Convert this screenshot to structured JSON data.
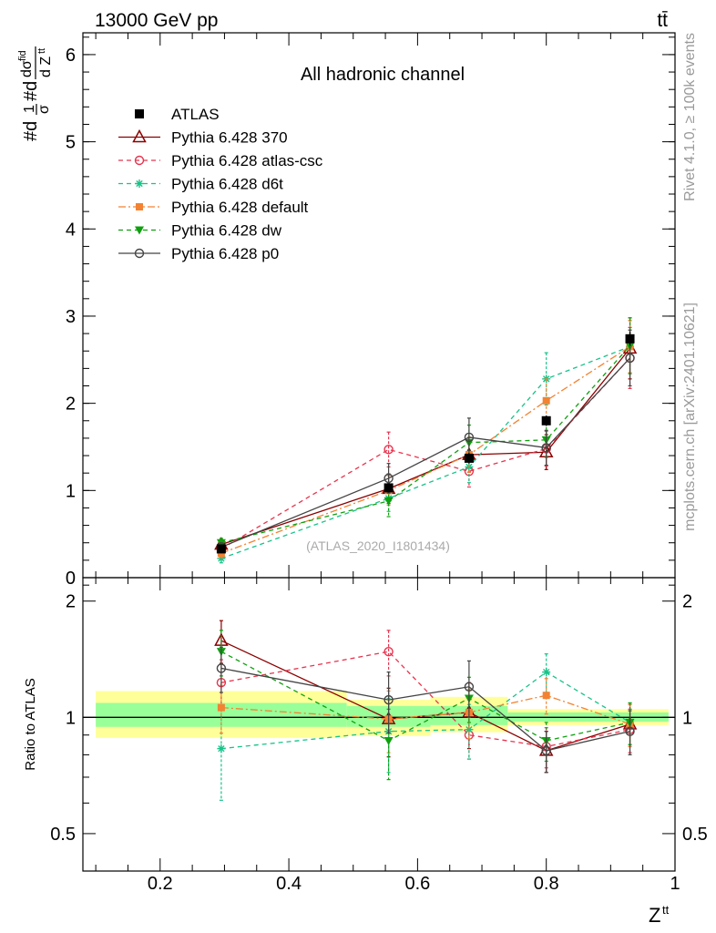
{
  "header": {
    "energy_label": "13000 GeV pp",
    "process_label": "tt̄",
    "side_label_top": "Rivet 4.1.0, ≥ 100k events",
    "side_label_bottom": "mcplots.cern.ch [arXiv:2401.10621]"
  },
  "colors": {
    "atlas": "#000000",
    "p370": "#8b0000",
    "atlascsc": "#e8344e",
    "d6t": "#17c389",
    "default": "#f38232",
    "dw": "#0fa00f",
    "p0": "#444444",
    "band_yellow": "#ffff99",
    "band_green": "#99ff99"
  },
  "chart_data": [
    {
      "type": "line",
      "panel": "main",
      "title": "All hadronic channel",
      "ylabel": "#d 1/σ #d dσ^fid / d Z^tt",
      "watermark": "(ATLAS_2020_I1801434)",
      "xlim": [
        0.08,
        1.0
      ],
      "ylim": [
        0,
        6.25
      ],
      "yticks": [
        0,
        1,
        2,
        3,
        4,
        5,
        6
      ],
      "x": [
        0.295,
        0.555,
        0.68,
        0.8,
        0.93
      ],
      "series": [
        {
          "name": "ATLAS",
          "key": "atlas",
          "values": [
            0.33,
            1.03,
            1.37,
            1.8,
            2.74
          ],
          "errors": [
            0.02,
            0.05,
            0.06,
            0.06,
            0.08
          ],
          "xerr": [
            0.2,
            0.07,
            0.06,
            0.06,
            0.07
          ]
        },
        {
          "name": "Pythia 6.428 370",
          "key": "p370",
          "values": [
            0.38,
            1.02,
            1.41,
            1.44,
            2.63
          ],
          "errors": [
            0.05,
            0.17,
            0.2,
            0.2,
            0.35
          ]
        },
        {
          "name": "Pythia 6.428 atlas-csc",
          "key": "atlascsc",
          "values": [
            0.33,
            1.47,
            1.22,
            1.48,
            2.52
          ],
          "errors": [
            0.05,
            0.2,
            0.18,
            0.2,
            0.35
          ]
        },
        {
          "name": "Pythia 6.428 d6t",
          "key": "d6t",
          "values": [
            0.22,
            0.91,
            1.27,
            2.28,
            2.65
          ],
          "errors": [
            0.05,
            0.15,
            0.18,
            0.3,
            0.3
          ]
        },
        {
          "name": "Pythia 6.428 default",
          "key": "default",
          "values": [
            0.28,
            1.0,
            1.41,
            2.03,
            2.65
          ],
          "errors": [
            0.05,
            0.17,
            0.2,
            0.25,
            0.3
          ]
        },
        {
          "name": "Pythia 6.428 dw",
          "key": "dw",
          "values": [
            0.4,
            0.88,
            1.55,
            1.58,
            2.66
          ],
          "errors": [
            0.05,
            0.18,
            0.2,
            0.2,
            0.32
          ]
        },
        {
          "name": "Pythia 6.428 p0",
          "key": "p0",
          "values": [
            0.35,
            1.14,
            1.61,
            1.49,
            2.52
          ],
          "errors": [
            0.05,
            0.17,
            0.22,
            0.2,
            0.32
          ]
        }
      ]
    },
    {
      "type": "line",
      "panel": "ratio",
      "ylabel": "Ratio to ATLAS",
      "xlabel": "Z^tt",
      "xlim": [
        0.08,
        1.0
      ],
      "ylim": [
        0.4,
        2.3
      ],
      "yticks": [
        0.5,
        1,
        2
      ],
      "ytick_labels": [
        "0.5",
        "1",
        "2"
      ],
      "xticks": [
        0.2,
        0.4,
        0.6,
        0.8,
        1.0
      ],
      "xtick_labels": [
        "0.2",
        "0.4",
        "0.6",
        "0.8",
        "1"
      ],
      "x": [
        0.295,
        0.555,
        0.68,
        0.8,
        0.93
      ],
      "bands": [
        {
          "x0": 0.1,
          "x1": 0.49,
          "yellow": [
            0.885,
            1.17
          ],
          "green": [
            0.945,
            1.09
          ]
        },
        {
          "x0": 0.49,
          "x1": 0.62,
          "yellow": [
            0.895,
            1.11
          ],
          "green": [
            0.945,
            1.07
          ]
        },
        {
          "x0": 0.62,
          "x1": 0.74,
          "yellow": [
            0.915,
            1.13
          ],
          "green": [
            0.955,
            1.07
          ]
        },
        {
          "x0": 0.74,
          "x1": 0.99,
          "yellow": [
            0.955,
            1.05
          ],
          "green": [
            0.975,
            1.03
          ]
        }
      ],
      "series": [
        {
          "name": "Pythia 6.428 370",
          "key": "p370",
          "values": [
            1.58,
            0.99,
            1.03,
            0.82,
            0.96
          ],
          "errors": [
            0.2,
            0.2,
            0.2,
            0.1,
            0.12
          ]
        },
        {
          "name": "Pythia 6.428 atlas-csc",
          "key": "atlascsc",
          "values": [
            1.23,
            1.48,
            0.9,
            0.84,
            0.93
          ],
          "errors": [
            0.18,
            0.2,
            0.12,
            0.1,
            0.12
          ]
        },
        {
          "name": "Pythia 6.428 d6t",
          "key": "d6t",
          "values": [
            0.83,
            0.92,
            0.93,
            1.31,
            0.97
          ],
          "errors": [
            0.22,
            0.2,
            0.15,
            0.15,
            0.12
          ]
        },
        {
          "name": "Pythia 6.428 default",
          "key": "default",
          "values": [
            1.06,
            0.99,
            1.03,
            1.14,
            0.96
          ],
          "errors": [
            0.15,
            0.18,
            0.15,
            0.12,
            0.12
          ]
        },
        {
          "name": "Pythia 6.428 dw",
          "key": "dw",
          "values": [
            1.48,
            0.87,
            1.12,
            0.87,
            0.97
          ],
          "errors": [
            0.2,
            0.18,
            0.15,
            0.1,
            0.12
          ]
        },
        {
          "name": "Pythia 6.428 p0",
          "key": "p0",
          "values": [
            1.34,
            1.11,
            1.2,
            0.82,
            0.92
          ],
          "errors": [
            0.18,
            0.2,
            0.2,
            0.1,
            0.12
          ]
        }
      ]
    }
  ]
}
